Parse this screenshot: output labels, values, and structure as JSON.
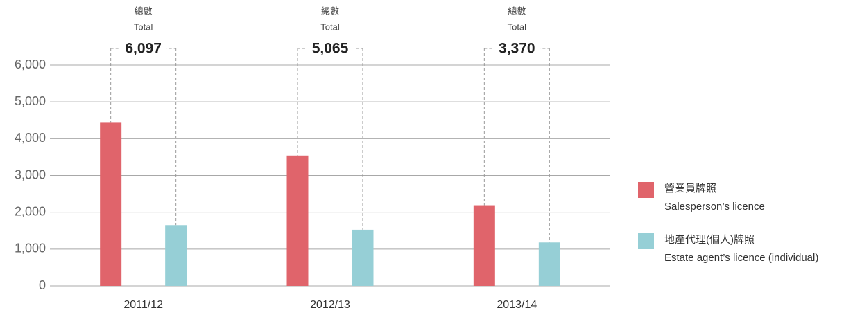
{
  "chart_data": {
    "type": "bar",
    "categories": [
      "2011/12",
      "2012/13",
      "2013/14"
    ],
    "series": [
      {
        "name": "營業員牌照",
        "subname": "Salesperson’s licence",
        "color": "#e0646b",
        "values": [
          4450,
          3540,
          2190
        ]
      },
      {
        "name": "地產代理(個人)牌照",
        "subname": "Estate agent’s licence (individual)",
        "color": "#96cfd6",
        "values": [
          1650,
          1525,
          1180
        ]
      }
    ],
    "total_label_zh": "總數",
    "total_label_en": "Total",
    "totals": [
      "6,097",
      "5,065",
      "3,370"
    ],
    "ylim": [
      0,
      6000
    ],
    "yticks": [
      0,
      {
        "value": 1000,
        "label": "1,000"
      },
      {
        "value": 2000,
        "label": "2,000"
      },
      {
        "value": 3000,
        "label": "3,000"
      },
      {
        "value": 4000,
        "label": "4,000"
      },
      {
        "value": 5000,
        "label": "5,000"
      },
      {
        "value": 6000,
        "label": "6,000"
      }
    ],
    "grid": true,
    "legend": "right"
  }
}
